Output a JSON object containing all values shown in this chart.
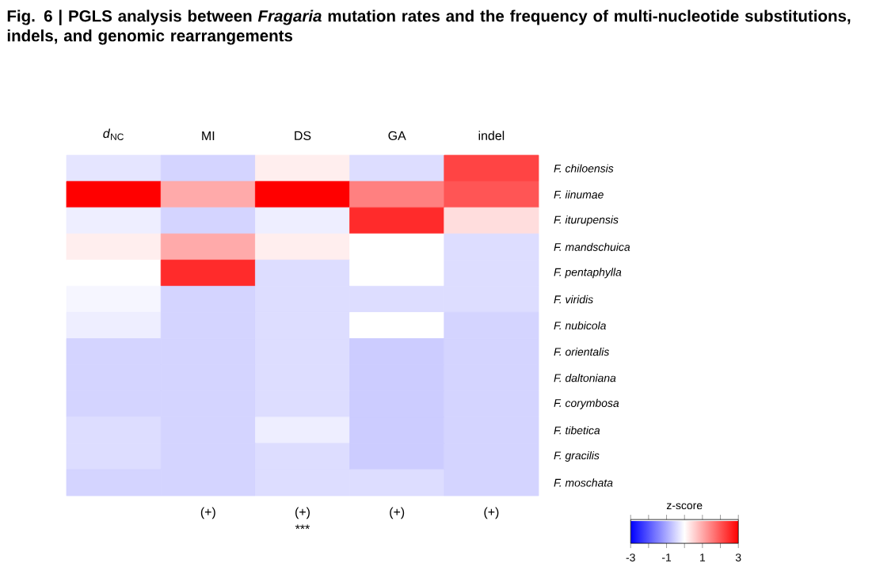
{
  "chart_data": {
    "type": "heatmap",
    "title": "Fig. 6 | PGLS analysis between *Fragaria* mutation rates and the frequency of multi-nucleotide substitutions, indels, and genomic rearrangements",
    "categories": [
      "*d*$_{NC}$",
      "MI",
      "DS",
      "GA",
      "indel"
    ],
    "y_categories": [
      "F. chiloensis",
      "F. iinumae",
      "F. iturupensis",
      "F. mandschuica",
      "F. pentaphylla",
      "F. viridis",
      "F. nubicola",
      "F. orientalis",
      "F. daltoniana",
      "F. corymbosa",
      "F. tibetica",
      "F. gracilis",
      "F. moschata"
    ],
    "cells": [
      [
        -0.3,
        -0.5,
        0.2,
        -0.4,
        2.2
      ],
      [
        3,
        1,
        3,
        1.5,
        2
      ],
      [
        -0.2,
        -0.5,
        -0.2,
        2.5,
        0.4
      ],
      [
        0.2,
        1,
        0.2,
        0,
        -0.4
      ],
      [
        0,
        2.5,
        -0.4,
        0,
        -0.4
      ],
      [
        -0.1,
        -0.5,
        -0.4,
        -0.4,
        -0.4
      ],
      [
        -0.2,
        -0.5,
        -0.4,
        0,
        -0.5
      ],
      [
        -0.5,
        -0.5,
        -0.4,
        -0.6,
        -0.5
      ],
      [
        -0.5,
        -0.5,
        -0.4,
        -0.6,
        -0.5
      ],
      [
        -0.5,
        -0.5,
        -0.4,
        -0.6,
        -0.5
      ],
      [
        -0.4,
        -0.5,
        -0.2,
        -0.6,
        -0.5
      ],
      [
        -0.4,
        -0.5,
        -0.4,
        -0.6,
        -0.5
      ],
      [
        -0.5,
        -0.5,
        -0.4,
        -0.4,
        -0.5
      ]
    ],
    "clabel": "z-score",
    "clim": [
      -3,
      3
    ],
    "cticks": [
      -3,
      {
        "value": -2,
        "label": null
      },
      -1,
      {
        "value": 0,
        "label": null
      },
      1,
      {
        "value": 2,
        "label": null
      },
      3
    ],
    "annotations": [
      "(+)",
      "(+)",
      "(+)",
      "(+)",
      "***"
    ]
  }
}
